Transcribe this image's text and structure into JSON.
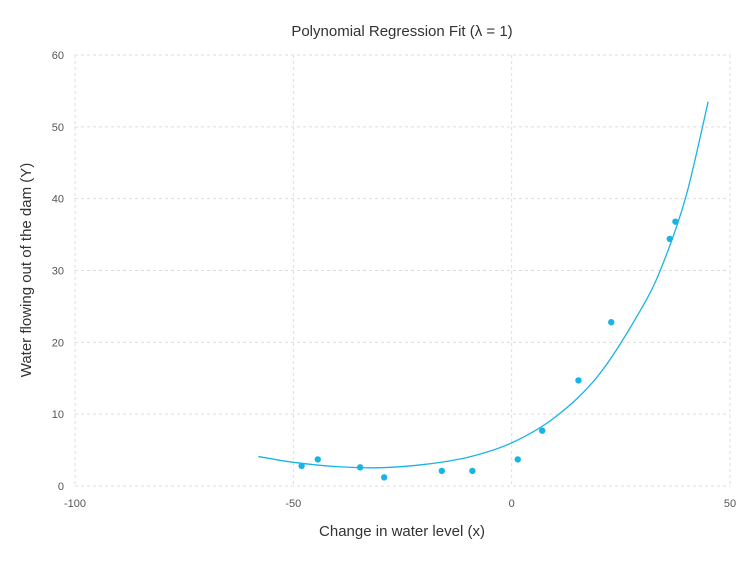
{
  "chart_data": {
    "type": "scatter",
    "title": "Polynomial Regression Fit (λ = 1)",
    "xlabel": "Change in water level (x)",
    "ylabel": "Water flowing out of the dam (Y)",
    "xlim": [
      -100,
      50
    ],
    "ylim": [
      0,
      60
    ],
    "xticks": [
      -100,
      -50,
      0,
      50
    ],
    "yticks": [
      0,
      10,
      20,
      30,
      40,
      50,
      60
    ],
    "grid": true,
    "color": "#1ab3e6",
    "points": [
      {
        "x": -48.1,
        "y": 2.8
      },
      {
        "x": -44.4,
        "y": 3.7
      },
      {
        "x": -34.7,
        "y": 2.6
      },
      {
        "x": -29.2,
        "y": 1.2
      },
      {
        "x": -16.0,
        "y": 2.1
      },
      {
        "x": -9.0,
        "y": 2.1
      },
      {
        "x": 1.4,
        "y": 3.7
      },
      {
        "x": 7.0,
        "y": 7.7
      },
      {
        "x": 15.3,
        "y": 14.7
      },
      {
        "x": 22.8,
        "y": 22.8
      },
      {
        "x": 36.2,
        "y": 34.4
      },
      {
        "x": 37.5,
        "y": 36.8
      }
    ],
    "fit_curve": [
      {
        "x": -58,
        "y": 4.1
      },
      {
        "x": -50,
        "y": 3.3
      },
      {
        "x": -40,
        "y": 2.7
      },
      {
        "x": -30,
        "y": 2.55
      },
      {
        "x": -20,
        "y": 3.0
      },
      {
        "x": -10,
        "y": 4.0
      },
      {
        "x": 0,
        "y": 6.0
      },
      {
        "x": 10,
        "y": 9.6
      },
      {
        "x": 20,
        "y": 15.5
      },
      {
        "x": 30,
        "y": 25.0
      },
      {
        "x": 35,
        "y": 31.5
      },
      {
        "x": 40,
        "y": 40.5
      },
      {
        "x": 45,
        "y": 53.5
      }
    ]
  }
}
